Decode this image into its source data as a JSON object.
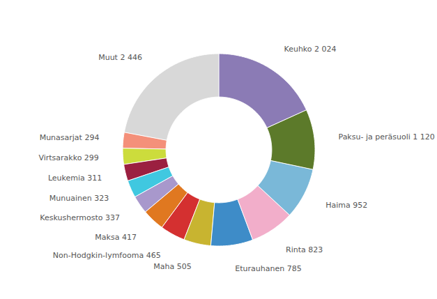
{
  "chart_data": {
    "type": "pie",
    "categories": [
      "Keuhko 2 024",
      "Paksu- ja peräsuoli 1 120",
      "Haima 952",
      "Rinta 823",
      "Eturauhanen 785",
      "Maha 505",
      "Non-Hodgkin-lymfooma 465",
      "Maksa 417",
      "Keskushermosto 337",
      "Munuainen 323",
      "Leukemia 311",
      "Virtsarakko 299",
      "Munasarjat 294",
      "Muut 2 446"
    ],
    "values": [
      2024,
      1120,
      952,
      823,
      785,
      505,
      465,
      417,
      337,
      323,
      311,
      299,
      294,
      2446
    ],
    "colors": [
      "#8B7BB5",
      "#5C7A2A",
      "#7AB8D8",
      "#F2AECA",
      "#3E8CC8",
      "#C8B430",
      "#D43030",
      "#E07820",
      "#A898CC",
      "#40C8E0",
      "#9B2040",
      "#CCDC3C",
      "#F4907A",
      "#D8D8D8"
    ]
  }
}
